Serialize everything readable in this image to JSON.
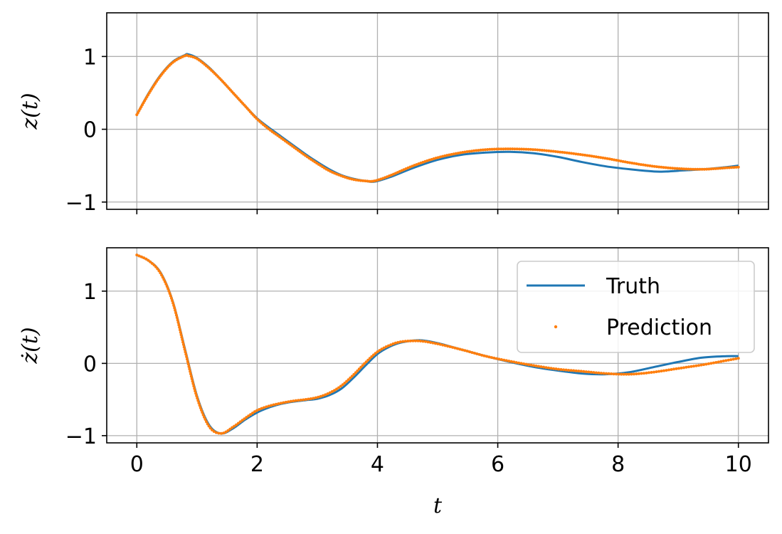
{
  "colors": {
    "truth": "#1f77b4",
    "prediction": "#ff7f0e",
    "grid": "#b0b0b0"
  },
  "chart_data": [
    {
      "type": "line",
      "ylabel": "z(t)",
      "xlabel": "",
      "xlim": [
        -0.5,
        10.5
      ],
      "ylim": [
        -1.1,
        1.6
      ],
      "xticks": [
        0,
        2,
        4,
        6,
        8,
        10
      ],
      "yticks": [
        -1,
        0,
        1
      ],
      "xtick_labels_visible": false,
      "grid": true,
      "series": [
        {
          "name": "Truth",
          "style": "line",
          "x": [
            0,
            0.2,
            0.4,
            0.6,
            0.8,
            0.85,
            1.0,
            1.2,
            1.4,
            1.6,
            1.8,
            2.0,
            2.2,
            2.4,
            2.6,
            2.8,
            3.0,
            3.2,
            3.4,
            3.6,
            3.8,
            3.95,
            4.2,
            4.6,
            5.0,
            5.4,
            5.8,
            6.2,
            6.6,
            7.0,
            7.4,
            7.8,
            8.2,
            8.6,
            8.8,
            9.0,
            9.4,
            9.8,
            10.0
          ],
          "y": [
            0.2,
            0.5,
            0.75,
            0.93,
            1.02,
            1.03,
            0.98,
            0.85,
            0.68,
            0.5,
            0.32,
            0.15,
            0.02,
            -0.1,
            -0.22,
            -0.34,
            -0.45,
            -0.55,
            -0.63,
            -0.68,
            -0.71,
            -0.72,
            -0.66,
            -0.53,
            -0.42,
            -0.35,
            -0.32,
            -0.31,
            -0.33,
            -0.38,
            -0.45,
            -0.51,
            -0.55,
            -0.58,
            -0.58,
            -0.57,
            -0.55,
            -0.52,
            -0.5
          ]
        },
        {
          "name": "Prediction",
          "style": "dots",
          "x": [
            0,
            0.2,
            0.4,
            0.6,
            0.8,
            0.85,
            1.0,
            1.2,
            1.4,
            1.6,
            1.8,
            2.0,
            2.2,
            2.4,
            2.6,
            2.8,
            3.0,
            3.2,
            3.4,
            3.6,
            3.8,
            3.95,
            4.2,
            4.6,
            5.0,
            5.4,
            5.8,
            6.2,
            6.6,
            7.0,
            7.4,
            7.8,
            8.2,
            8.6,
            9.0,
            9.4,
            9.8,
            10.0
          ],
          "y": [
            0.2,
            0.49,
            0.74,
            0.92,
            1.01,
            1.01,
            0.97,
            0.84,
            0.68,
            0.5,
            0.32,
            0.14,
            0.0,
            -0.12,
            -0.24,
            -0.36,
            -0.47,
            -0.57,
            -0.64,
            -0.69,
            -0.71,
            -0.71,
            -0.64,
            -0.5,
            -0.39,
            -0.32,
            -0.28,
            -0.27,
            -0.28,
            -0.31,
            -0.35,
            -0.4,
            -0.46,
            -0.51,
            -0.54,
            -0.55,
            -0.53,
            -0.52
          ]
        }
      ]
    },
    {
      "type": "line",
      "ylabel": "ż(t)",
      "xlabel": "t",
      "xlim": [
        -0.5,
        10.5
      ],
      "ylim": [
        -1.1,
        1.6
      ],
      "xticks": [
        0,
        2,
        4,
        6,
        8,
        10
      ],
      "yticks": [
        -1,
        0,
        1
      ],
      "xtick_labels_visible": true,
      "grid": true,
      "legend": {
        "placement": "top-right",
        "entries": [
          "Truth",
          "Prediction"
        ]
      },
      "series": [
        {
          "name": "Truth",
          "style": "line",
          "x": [
            0,
            0.2,
            0.4,
            0.6,
            0.8,
            1.0,
            1.2,
            1.4,
            1.6,
            1.8,
            2.0,
            2.2,
            2.4,
            2.6,
            2.8,
            3.0,
            3.2,
            3.4,
            3.6,
            3.8,
            4.0,
            4.2,
            4.4,
            4.7,
            5.0,
            5.4,
            5.8,
            6.2,
            6.6,
            7.0,
            7.4,
            7.8,
            8.2,
            8.6,
            9.0,
            9.4,
            9.8,
            10.0
          ],
          "y": [
            1.5,
            1.42,
            1.25,
            0.85,
            0.2,
            -0.45,
            -0.85,
            -0.97,
            -0.9,
            -0.78,
            -0.68,
            -0.61,
            -0.56,
            -0.53,
            -0.51,
            -0.49,
            -0.44,
            -0.35,
            -0.2,
            -0.03,
            0.13,
            0.23,
            0.29,
            0.32,
            0.28,
            0.19,
            0.1,
            0.02,
            -0.05,
            -0.1,
            -0.14,
            -0.15,
            -0.12,
            -0.05,
            0.02,
            0.08,
            0.1,
            0.1
          ]
        },
        {
          "name": "Prediction",
          "style": "dots",
          "x": [
            0,
            0.2,
            0.4,
            0.6,
            0.8,
            1.0,
            1.2,
            1.4,
            1.6,
            1.8,
            2.0,
            2.2,
            2.4,
            2.6,
            2.8,
            3.0,
            3.2,
            3.4,
            3.6,
            3.8,
            4.0,
            4.2,
            4.4,
            4.7,
            5.0,
            5.4,
            5.8,
            6.2,
            6.6,
            7.0,
            7.4,
            7.8,
            8.2,
            8.6,
            9.0,
            9.4,
            9.8,
            10.0
          ],
          "y": [
            1.5,
            1.42,
            1.24,
            0.84,
            0.18,
            -0.47,
            -0.87,
            -0.97,
            -0.88,
            -0.76,
            -0.65,
            -0.59,
            -0.55,
            -0.52,
            -0.5,
            -0.47,
            -0.41,
            -0.31,
            -0.16,
            0.01,
            0.16,
            0.25,
            0.3,
            0.31,
            0.27,
            0.19,
            0.1,
            0.03,
            -0.03,
            -0.08,
            -0.11,
            -0.14,
            -0.15,
            -0.12,
            -0.07,
            -0.02,
            0.04,
            0.07
          ]
        }
      ]
    }
  ]
}
